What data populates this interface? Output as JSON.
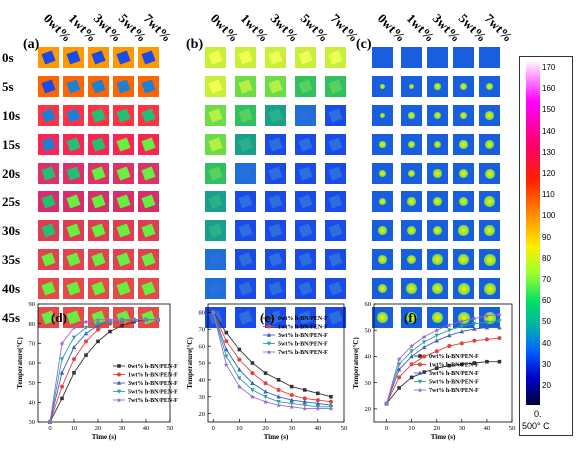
{
  "col_headers": [
    "0wt%",
    "1wt%",
    "3wt%",
    "5wt%",
    "7wt%"
  ],
  "row_labels": [
    "0s",
    "5s",
    "10s",
    "15s",
    "20s",
    "25s",
    "30s",
    "35s",
    "40s",
    "45s"
  ],
  "panels": {
    "a": "(a)",
    "b": "(b)",
    "c": "(c)",
    "d": "(d)",
    "e": "(e)",
    "f": "(f)"
  },
  "colorbar": {
    "ticks": [
      "170",
      "160",
      "150",
      "140",
      "130",
      "120",
      "110",
      "100",
      "90",
      "80",
      "70",
      "60",
      "50",
      "40",
      "30",
      "20"
    ],
    "footer_min": "0.",
    "footer_max": "500° C",
    "colors": [
      "#ffffff",
      "#ff00ff",
      "#ff0066",
      "#ff2200",
      "#ff9900",
      "#ffee00",
      "#99ff33",
      "#00e060",
      "#00b2aa",
      "#0066ff",
      "#0000cc",
      "#000033"
    ]
  },
  "chart_data": [
    {
      "type": "line",
      "panel": "(d)",
      "xlabel": "Time (s)",
      "ylabel": "Temperature(°C)",
      "xlim": [
        -5,
        50
      ],
      "ylim": [
        30,
        90
      ],
      "xticks": [
        "0",
        "10",
        "20",
        "30",
        "40",
        "50"
      ],
      "yticks": [
        "30",
        "40",
        "50",
        "60",
        "70",
        "80",
        "90"
      ],
      "x": [
        0,
        5,
        10,
        15,
        20,
        25,
        30,
        35,
        40,
        45
      ],
      "series": [
        {
          "name": "0wt% h-BN/PEN-F",
          "color": "#333333",
          "values": [
            30,
            42,
            55,
            64,
            71,
            76,
            79,
            81,
            82,
            82
          ]
        },
        {
          "name": "1wt% h-BN/PEN-F",
          "color": "#e8413c",
          "values": [
            30,
            48,
            62,
            71,
            77,
            80,
            81,
            82,
            82,
            82
          ]
        },
        {
          "name": "3wt% h-BN/PEN-F",
          "color": "#3b5fc0",
          "values": [
            30,
            55,
            68,
            75,
            79,
            81,
            82,
            82,
            82,
            82
          ]
        },
        {
          "name": "5wt% h-BN/PEN-F",
          "color": "#2ca59a",
          "values": [
            30,
            62,
            73,
            78,
            80,
            81,
            82,
            82,
            82,
            82
          ]
        },
        {
          "name": "7wt% h-BN/PEN-F",
          "color": "#9b6bd1",
          "values": [
            30,
            70,
            78,
            81,
            82,
            82,
            82,
            82,
            82,
            82
          ]
        }
      ]
    },
    {
      "type": "line",
      "panel": "(e)",
      "xlabel": "Time (s)",
      "ylabel": "Temperature(°C)",
      "xlim": [
        -2,
        50
      ],
      "ylim": [
        15,
        85
      ],
      "xticks": [
        "0",
        "10",
        "20",
        "30",
        "40",
        "50"
      ],
      "yticks": [
        "20",
        "30",
        "40",
        "50",
        "60",
        "70",
        "80"
      ],
      "x": [
        0,
        5,
        10,
        15,
        20,
        25,
        30,
        35,
        40,
        45
      ],
      "series": [
        {
          "name": "0wt% h-BN/PEN-F",
          "color": "#333333",
          "values": [
            80,
            68,
            58,
            50,
            44,
            40,
            36,
            34,
            32,
            30
          ]
        },
        {
          "name": "1wt% h-BN/PEN-F",
          "color": "#e8413c",
          "values": [
            80,
            63,
            52,
            44,
            38,
            34,
            31,
            29,
            28,
            27
          ]
        },
        {
          "name": "3wt% h-BN/PEN-F",
          "color": "#3b5fc0",
          "values": [
            80,
            58,
            46,
            38,
            33,
            30,
            28,
            27,
            26,
            25
          ]
        },
        {
          "name": "5wt% h-BN/PEN-F",
          "color": "#2ca59a",
          "values": [
            80,
            54,
            41,
            34,
            30,
            27,
            26,
            25,
            24,
            24
          ]
        },
        {
          "name": "7wt% h-BN/PEN-F",
          "color": "#9b6bd1",
          "values": [
            80,
            49,
            36,
            30,
            27,
            25,
            24,
            23,
            23,
            23
          ]
        }
      ]
    },
    {
      "type": "line",
      "panel": "(f)",
      "xlabel": "Time (s)",
      "ylabel": "Temperature(°C)",
      "xlim": [
        -5,
        50
      ],
      "ylim": [
        15,
        60
      ],
      "xticks": [
        "0",
        "10",
        "20",
        "30",
        "40",
        "50"
      ],
      "yticks": [
        "20",
        "30",
        "40",
        "50",
        "60"
      ],
      "x": [
        0,
        5,
        10,
        15,
        20,
        25,
        30,
        35,
        40,
        45
      ],
      "series": [
        {
          "name": "0wt% h-BN/PEN-F",
          "color": "#333333",
          "values": [
            22,
            28,
            32,
            34,
            35.5,
            36.5,
            37,
            37.5,
            38,
            38
          ]
        },
        {
          "name": "1wt% h-BN/PEN-F",
          "color": "#e8413c",
          "values": [
            22,
            32,
            37,
            40,
            42,
            44,
            45,
            46,
            46.5,
            47
          ]
        },
        {
          "name": "3wt% h-BN/PEN-F",
          "color": "#3b5fc0",
          "values": [
            22,
            35,
            40,
            43.5,
            46,
            48,
            49.5,
            50.5,
            51,
            51
          ]
        },
        {
          "name": "5wt% h-BN/PEN-F",
          "color": "#2ca59a",
          "values": [
            22,
            37,
            42,
            45.5,
            48,
            50,
            51.5,
            52.5,
            53,
            53.5
          ]
        },
        {
          "name": "7wt% h-BN/PEN-F",
          "color": "#9b6bd1",
          "values": [
            22,
            39,
            44,
            47.5,
            50,
            52,
            53.5,
            54.5,
            55.5,
            56
          ]
        }
      ]
    }
  ]
}
